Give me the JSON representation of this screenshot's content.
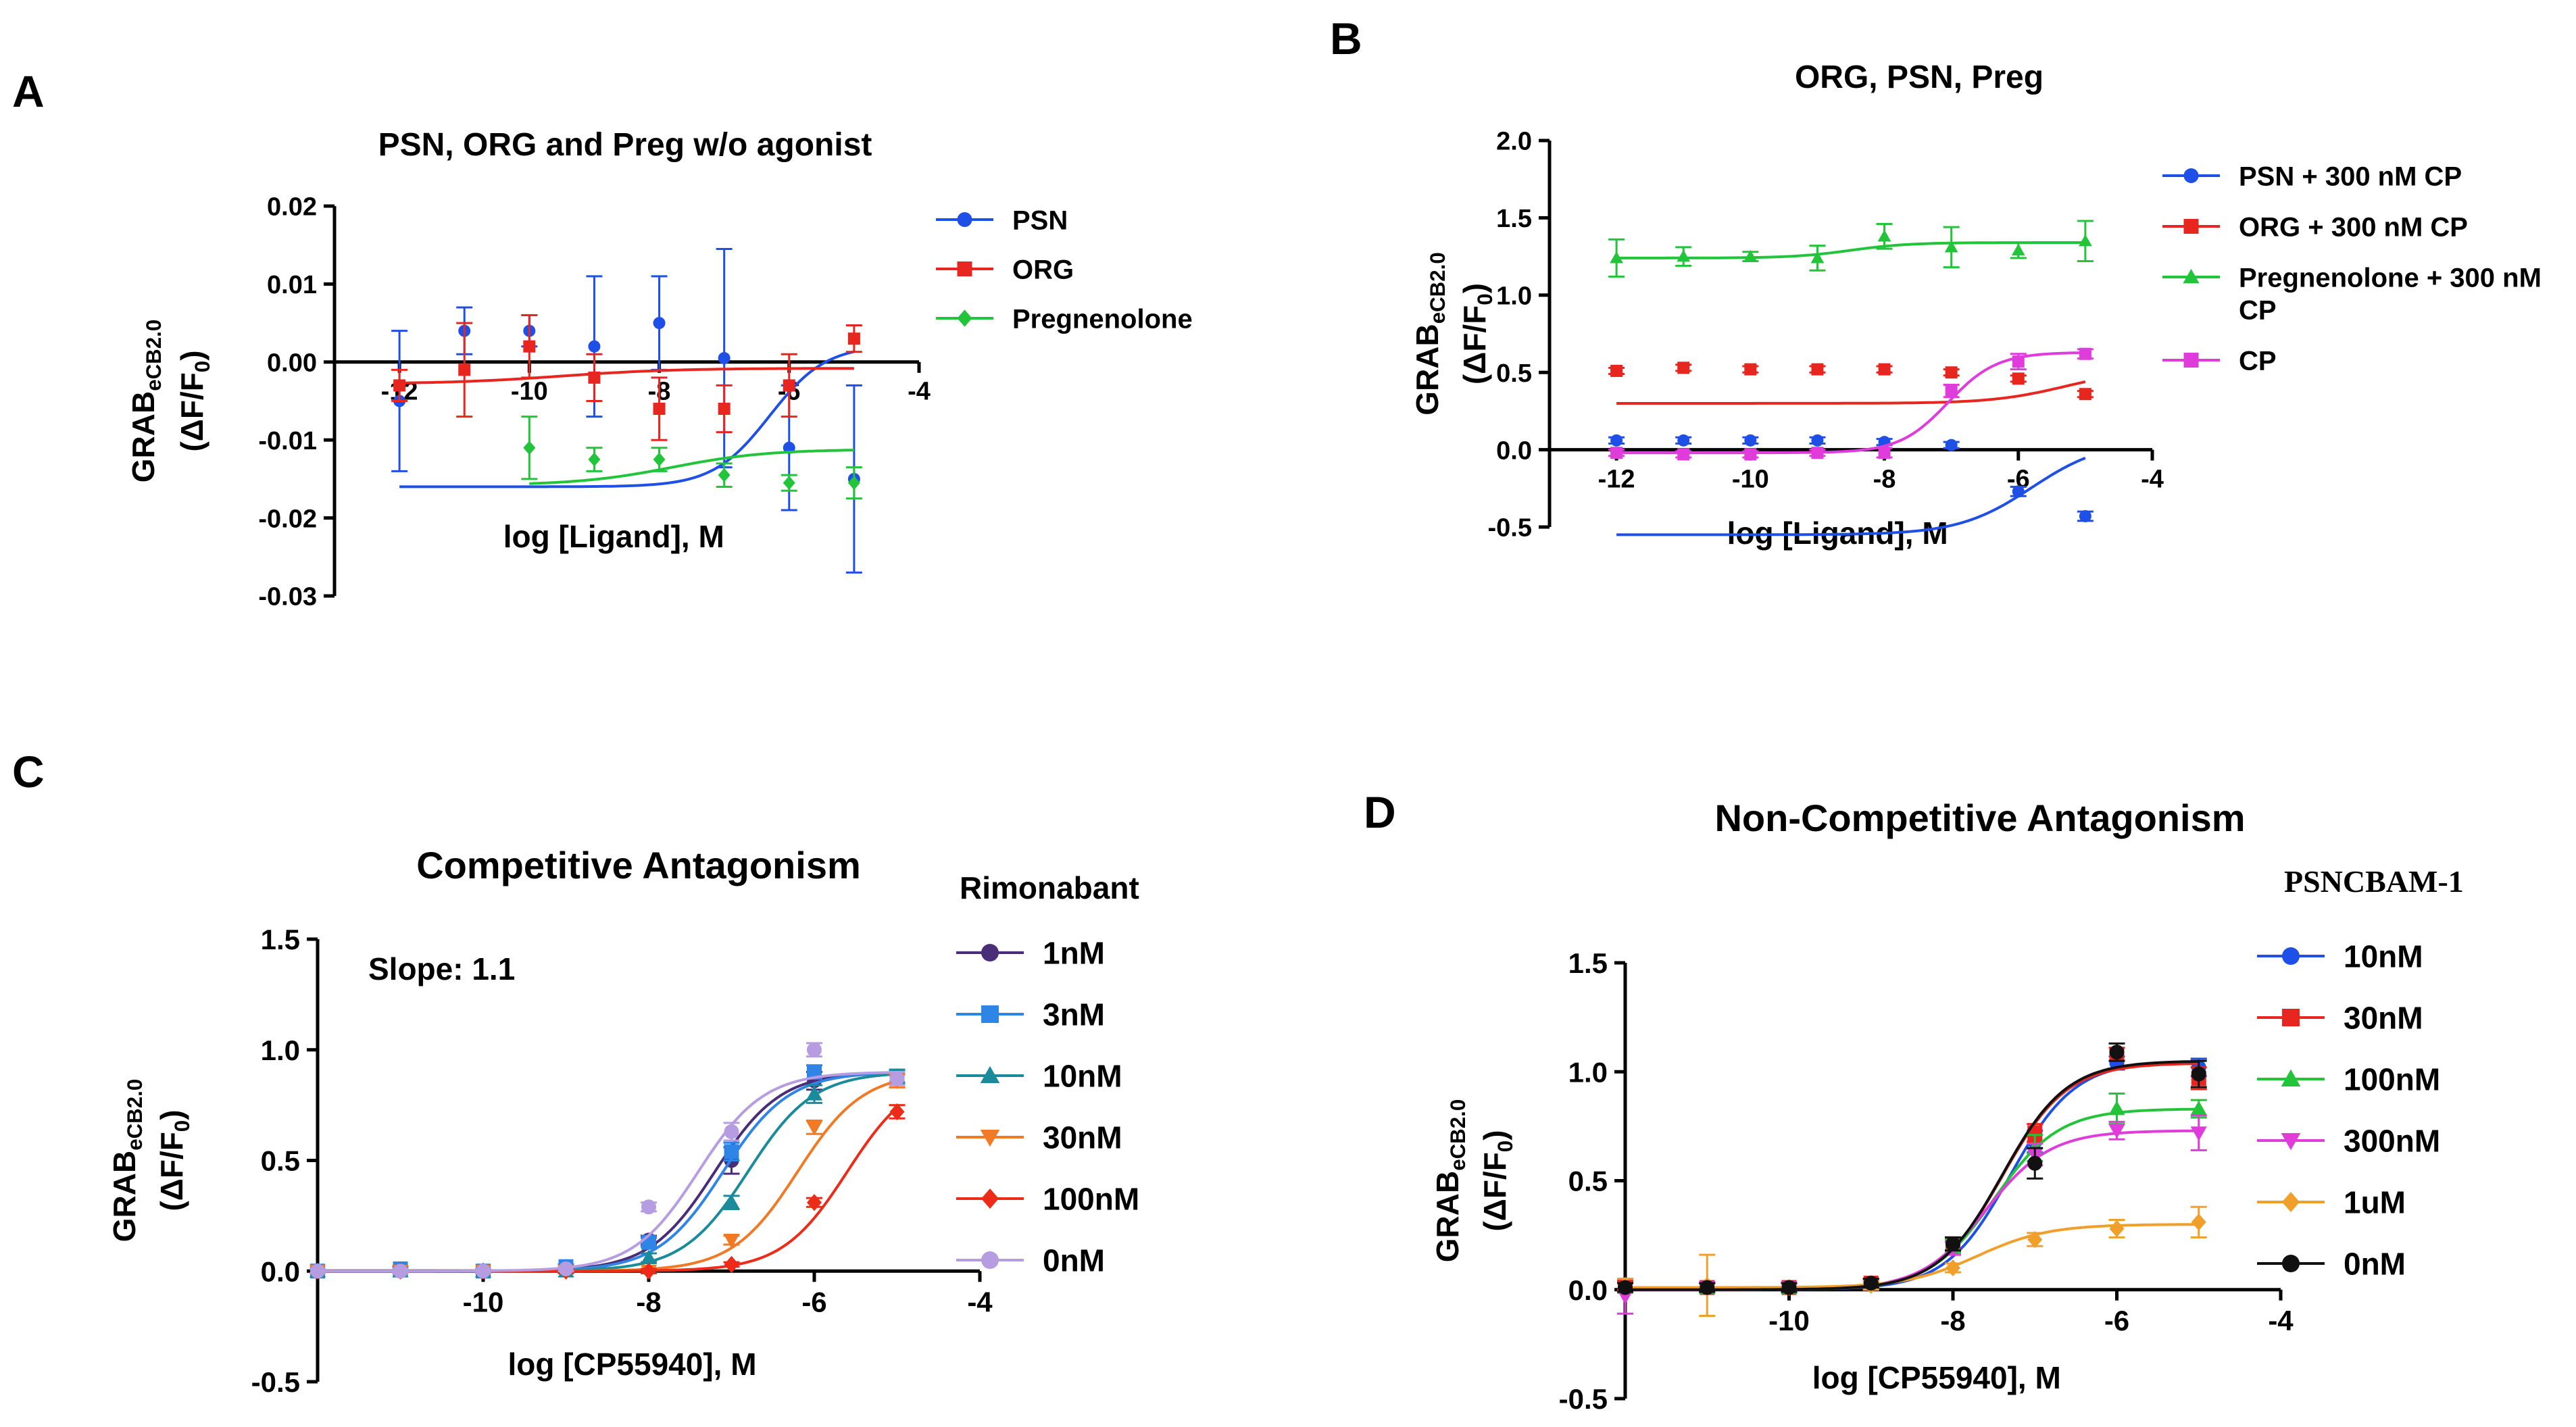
{
  "figure": {
    "description": "Four-panel figure of GRAB eCB2.0 dose-response curves"
  },
  "chart_data": [
    {
      "panel_label": "A",
      "type": "scatter",
      "title": "PSN, ORG and Preg w/o agonist",
      "xlabel": "log [Ligand], M",
      "ylabel_main": "GRAB",
      "ylabel_sub": "eCB2.0",
      "ylabel_2": "(ΔF/F",
      "ylabel_2_sub": "0",
      "ylabel_2_end": ")",
      "xlim": [
        -13,
        -4
      ],
      "ylim": [
        -0.03,
        0.02
      ],
      "x_axis_at_y": 0,
      "xticks": [
        -12,
        -10,
        -8,
        -6,
        -4
      ],
      "xtick_labels": [
        "-12",
        "-10",
        "-8",
        "-6",
        "-4"
      ],
      "yticks": [
        -0.03,
        -0.02,
        -0.01,
        0.0,
        0.01,
        0.02
      ],
      "ytick_labels": [
        "-0.03",
        "-0.02",
        "-0.01",
        "0.00",
        "0.01",
        "0.02"
      ],
      "legend_position": "right",
      "series": [
        {
          "name": "PSN",
          "color": "#1e4fe6",
          "marker": "circle",
          "x": [
            -12,
            -11,
            -10,
            -9,
            -8,
            -7,
            -6,
            -5
          ],
          "y": [
            -0.005,
            0.004,
            0.004,
            0.002,
            0.005,
            0.0005,
            -0.011,
            -0.015
          ],
          "err": [
            0.009,
            0.003,
            0.002,
            0.009,
            0.006,
            0.014,
            0.008,
            0.012
          ],
          "fit": {
            "bottom": -0.016,
            "top": 0.0022,
            "ec50": -6.3,
            "hill": 1.0
          }
        },
        {
          "name": "ORG",
          "color": "#e6261f",
          "marker": "square",
          "x": [
            -12,
            -11,
            -10,
            -9,
            -8,
            -7,
            -6,
            -5
          ],
          "y": [
            -0.003,
            -0.001,
            0.002,
            -0.002,
            -0.006,
            -0.006,
            -0.003,
            0.003
          ],
          "err": [
            0.002,
            0.006,
            0.004,
            0.003,
            0.004,
            0.003,
            0.004,
            0.0017
          ],
          "fit": {
            "bottom": -0.0028,
            "top": -0.0008,
            "ec50": -9.5,
            "hill": 0.5
          }
        },
        {
          "name": "Pregnenolone",
          "color": "#22c43a",
          "marker": "diamond",
          "x": [
            -10,
            -9,
            -8,
            -7,
            -6,
            -5
          ],
          "y": [
            -0.011,
            -0.0125,
            -0.0125,
            -0.0145,
            -0.0155,
            -0.0155
          ],
          "err": [
            0.004,
            0.0015,
            0.0015,
            0.0015,
            0.001,
            0.002
          ],
          "fit": {
            "bottom": -0.0158,
            "top": -0.0112,
            "ec50": -7.8,
            "hill": 0.6
          }
        }
      ]
    },
    {
      "panel_label": "B",
      "type": "scatter",
      "title": "ORG, PSN, Preg",
      "xlabel": "log [Ligand], M",
      "ylabel_main": "GRAB",
      "ylabel_sub": "eCB2.0",
      "ylabel_2": "(ΔF/F",
      "ylabel_2_sub": "0",
      "ylabel_2_end": ")",
      "xlim": [
        -13,
        -4
      ],
      "ylim": [
        -0.5,
        2.0
      ],
      "x_axis_at_y": 0,
      "xticks": [
        -12,
        -10,
        -8,
        -6,
        -4
      ],
      "xtick_labels": [
        "-12",
        "-10",
        "-8",
        "-6",
        "-4"
      ],
      "yticks": [
        -0.5,
        0.0,
        0.5,
        1.0,
        1.5,
        2.0
      ],
      "ytick_labels": [
        "-0.5",
        "0.0",
        "0.5",
        "1.0",
        "1.5",
        "2.0"
      ],
      "legend_position": "right",
      "series": [
        {
          "name": "PSN + 300 nM CP",
          "color": "#1e4fe6",
          "marker": "circle",
          "x": [
            -12,
            -11,
            -10,
            -9,
            -8,
            -7,
            -6,
            -5
          ],
          "y": [
            0.06,
            0.06,
            0.06,
            0.06,
            0.05,
            0.03,
            -0.27,
            -0.43
          ],
          "err": [
            0.02,
            0.02,
            0.02,
            0.02,
            0.02,
            0.02,
            0.03,
            0.03
          ],
          "fit": {
            "bottom": -0.55,
            "top": 0.06,
            "ec50": -5.8,
            "hill": 0.8
          }
        },
        {
          "name": "ORG + 300 nM CP",
          "color": "#e6261f",
          "marker": "square",
          "x": [
            -12,
            -11,
            -10,
            -9,
            -8,
            -7,
            -6,
            -5
          ],
          "y": [
            0.51,
            0.53,
            0.52,
            0.52,
            0.52,
            0.5,
            0.46,
            0.36
          ],
          "err": [
            0.02,
            0.02,
            0.02,
            0.02,
            0.02,
            0.02,
            0.02,
            0.02
          ],
          "fit": {
            "bottom": 0.3,
            "top": 0.52,
            "ec50": -5.3,
            "hill": 0.8
          }
        },
        {
          "name": "Pregnenolone + 300 nM CP",
          "color": "#22c43a",
          "marker": "triangle",
          "x": [
            -12,
            -11,
            -10,
            -9,
            -8,
            -7,
            -6,
            -5
          ],
          "y": [
            1.24,
            1.25,
            1.25,
            1.24,
            1.38,
            1.31,
            1.29,
            1.35
          ],
          "err": [
            0.12,
            0.06,
            0.03,
            0.08,
            0.08,
            0.13,
            0.05,
            0.13
          ],
          "fit": {
            "bottom": 1.24,
            "top": 1.34,
            "ec50": -8.5,
            "hill": 1.0
          }
        },
        {
          "name": "CP",
          "color": "#e03cdc",
          "marker": "square",
          "x": [
            -12,
            -11,
            -10,
            -9,
            -8,
            -7,
            -6,
            -5
          ],
          "y": [
            -0.02,
            -0.03,
            -0.03,
            -0.02,
            -0.02,
            0.38,
            0.57,
            0.62
          ],
          "err": [
            0.02,
            0.02,
            0.02,
            0.02,
            0.03,
            0.04,
            0.05,
            0.03
          ],
          "fit": {
            "bottom": -0.02,
            "top": 0.63,
            "ec50": -7.05,
            "hill": 1.2
          }
        }
      ]
    },
    {
      "panel_label": "C",
      "type": "scatter",
      "title": "Competitive Antagonism",
      "annotation": "Slope: 1.1",
      "annotation_color": "#b01c17",
      "legend_title": "Rimonabant",
      "xlabel": "log [CP55940], M",
      "ylabel_main": "GRAB",
      "ylabel_sub": "eCB2.0",
      "ylabel_2": "(ΔF/F",
      "ylabel_2_sub": "0",
      "ylabel_2_end": ")",
      "xlim": [
        -12,
        -4
      ],
      "ylim": [
        -0.5,
        1.5
      ],
      "x_axis_at_y": 0,
      "xticks": [
        -10,
        -8,
        -6,
        -4
      ],
      "xtick_labels": [
        "-10",
        "-8",
        "-6",
        "-4"
      ],
      "yticks": [
        -0.5,
        0.0,
        0.5,
        1.0,
        1.5
      ],
      "ytick_labels": [
        "-0.5",
        "0.0",
        "0.5",
        "1.0",
        "1.5"
      ],
      "legend_position": "right",
      "series": [
        {
          "name": "1nM",
          "color": "#4a2d78",
          "marker": "circle",
          "x": [
            -12,
            -11,
            -10,
            -9,
            -8,
            -7,
            -6,
            -5
          ],
          "y": [
            0.0,
            0.0,
            0.0,
            0.02,
            0.14,
            0.5,
            0.86,
            0.88
          ],
          "err": [
            0.01,
            0.01,
            0.01,
            0.01,
            0.02,
            0.06,
            0.04,
            0.03
          ],
          "fit": {
            "bottom": 0,
            "top": 0.9,
            "ec50": -7.2,
            "hill": 1.1
          }
        },
        {
          "name": "3nM",
          "color": "#2f85e6",
          "marker": "square",
          "x": [
            -12,
            -11,
            -10,
            -9,
            -8,
            -7,
            -6,
            -5
          ],
          "y": [
            0.0,
            0.01,
            0.0,
            0.02,
            0.13,
            0.54,
            0.9,
            0.88
          ],
          "err": [
            0.01,
            0.01,
            0.01,
            0.01,
            0.02,
            0.04,
            0.03,
            0.03
          ],
          "fit": {
            "bottom": 0,
            "top": 0.9,
            "ec50": -7.1,
            "hill": 1.1
          }
        },
        {
          "name": "10nM",
          "color": "#1a8b9a",
          "marker": "triangle",
          "x": [
            -12,
            -11,
            -10,
            -9,
            -8,
            -7,
            -6,
            -5
          ],
          "y": [
            0.0,
            0.0,
            0.0,
            0.0,
            0.06,
            0.31,
            0.8,
            0.88
          ],
          "err": [
            0.01,
            0.01,
            0.01,
            0.01,
            0.02,
            0.03,
            0.04,
            0.03
          ],
          "fit": {
            "bottom": 0,
            "top": 0.9,
            "ec50": -6.8,
            "hill": 1.1
          }
        },
        {
          "name": "30nM",
          "color": "#f07a26",
          "marker": "triangle-down",
          "x": [
            -12,
            -11,
            -10,
            -9,
            -8,
            -7,
            -6,
            -5
          ],
          "y": [
            0.0,
            0.0,
            0.0,
            0.0,
            0.0,
            0.14,
            0.65,
            0.86
          ],
          "err": [
            0.01,
            0.01,
            0.01,
            0.01,
            0.01,
            0.02,
            0.03,
            0.03
          ],
          "fit": {
            "bottom": 0,
            "top": 0.9,
            "ec50": -6.2,
            "hill": 1.1
          }
        },
        {
          "name": "100nM",
          "color": "#ec2c18",
          "marker": "diamond",
          "x": [
            -12,
            -11,
            -10,
            -9,
            -8,
            -7,
            -6,
            -5
          ],
          "y": [
            0.0,
            0.0,
            0.0,
            0.0,
            0.0,
            0.03,
            0.31,
            0.72
          ],
          "err": [
            0.01,
            0.01,
            0.01,
            0.01,
            0.01,
            0.01,
            0.02,
            0.03
          ],
          "fit": {
            "bottom": 0,
            "top": 0.9,
            "ec50": -5.6,
            "hill": 1.1
          }
        },
        {
          "name": "0nM",
          "color": "#b69ce0",
          "marker": "circle",
          "x": [
            -12,
            -11,
            -10,
            -9,
            -8,
            -7,
            -6,
            -5
          ],
          "y": [
            0.0,
            0.0,
            0.0,
            0.01,
            0.29,
            0.63,
            1.0,
            0.87
          ],
          "err": [
            0.01,
            0.01,
            0.01,
            0.01,
            0.02,
            0.04,
            0.03,
            0.03
          ],
          "fit": {
            "bottom": 0,
            "top": 0.9,
            "ec50": -7.4,
            "hill": 1.1
          }
        }
      ]
    },
    {
      "panel_label": "D",
      "type": "scatter",
      "title": "Non-Competitive Antagonism",
      "legend_title": "PSNCBAM-1",
      "xlabel": "log [CP55940], M",
      "ylabel_main": "GRAB",
      "ylabel_sub": "eCB2.0",
      "ylabel_2": "(ΔF/F",
      "ylabel_2_sub": "0",
      "ylabel_2_end": ")",
      "xlim": [
        -12,
        -4
      ],
      "ylim": [
        -0.5,
        1.5
      ],
      "x_axis_at_y": 0,
      "xticks": [
        -10,
        -8,
        -6,
        -4
      ],
      "xtick_labels": [
        "-10",
        "-8",
        "-6",
        "-4"
      ],
      "yticks": [
        -0.5,
        0.0,
        0.5,
        1.0,
        1.5
      ],
      "ytick_labels": [
        "-0.5",
        "0.0",
        "0.5",
        "1.0",
        "1.5"
      ],
      "legend_position": "right",
      "series": [
        {
          "name": "10nM",
          "color": "#1e4fe6",
          "marker": "circle",
          "x": [
            -12,
            -11,
            -10,
            -9,
            -8,
            -7,
            -6,
            -5
          ],
          "y": [
            0.02,
            0.01,
            0.01,
            0.03,
            0.2,
            0.68,
            1.04,
            1.02
          ],
          "err": [
            0.02,
            0.02,
            0.02,
            0.02,
            0.03,
            0.05,
            0.03,
            0.04
          ],
          "fit": {
            "bottom": 0,
            "top": 1.05,
            "ec50": -7.3,
            "hill": 1.1
          }
        },
        {
          "name": "30nM",
          "color": "#e6261f",
          "marker": "square",
          "x": [
            -12,
            -11,
            -10,
            -9,
            -8,
            -7,
            -6,
            -5
          ],
          "y": [
            0.02,
            0.01,
            0.01,
            0.03,
            0.21,
            0.72,
            1.08,
            0.97
          ],
          "err": [
            0.02,
            0.02,
            0.02,
            0.02,
            0.03,
            0.04,
            0.03,
            0.05
          ],
          "fit": {
            "bottom": 0,
            "top": 1.04,
            "ec50": -7.4,
            "hill": 1.1
          }
        },
        {
          "name": "100nM",
          "color": "#22c43a",
          "marker": "triangle",
          "x": [
            -12,
            -11,
            -10,
            -9,
            -8,
            -7,
            -6,
            -5
          ],
          "y": [
            0.01,
            0.01,
            0.01,
            0.03,
            0.2,
            0.65,
            0.83,
            0.83
          ],
          "err": [
            0.02,
            0.02,
            0.02,
            0.02,
            0.03,
            0.06,
            0.07,
            0.04
          ],
          "fit": {
            "bottom": 0,
            "top": 0.83,
            "ec50": -7.5,
            "hill": 1.1
          }
        },
        {
          "name": "300nM",
          "color": "#e03cdc",
          "marker": "triangle-down",
          "x": [
            -12,
            -11,
            -10,
            -9,
            -8,
            -7,
            -6,
            -5
          ],
          "y": [
            -0.03,
            0.01,
            0.01,
            0.02,
            0.19,
            0.62,
            0.73,
            0.72
          ],
          "err": [
            0.08,
            0.02,
            0.02,
            0.02,
            0.03,
            0.05,
            0.04,
            0.08
          ],
          "fit": {
            "bottom": 0,
            "top": 0.73,
            "ec50": -7.6,
            "hill": 1.1
          }
        },
        {
          "name": "1uM",
          "color": "#f0a02a",
          "marker": "diamond",
          "x": [
            -12,
            -11,
            -10,
            -9,
            -8,
            -7,
            -6,
            -5
          ],
          "y": [
            0.02,
            0.02,
            0.01,
            0.02,
            0.1,
            0.23,
            0.28,
            0.31
          ],
          "err": [
            0.03,
            0.14,
            0.02,
            0.02,
            0.02,
            0.03,
            0.04,
            0.07
          ],
          "fit": {
            "bottom": 0.01,
            "top": 0.3,
            "ec50": -7.7,
            "hill": 1.0
          }
        },
        {
          "name": "0nM",
          "color": "#111111",
          "marker": "circle",
          "x": [
            -12,
            -11,
            -10,
            -9,
            -8,
            -7,
            -6,
            -5
          ],
          "y": [
            0.01,
            0.01,
            0.01,
            0.03,
            0.21,
            0.58,
            1.09,
            0.99
          ],
          "err": [
            0.02,
            0.02,
            0.02,
            0.02,
            0.03,
            0.07,
            0.04,
            0.06
          ],
          "fit": {
            "bottom": 0,
            "top": 1.05,
            "ec50": -7.4,
            "hill": 1.1
          }
        }
      ]
    }
  ]
}
